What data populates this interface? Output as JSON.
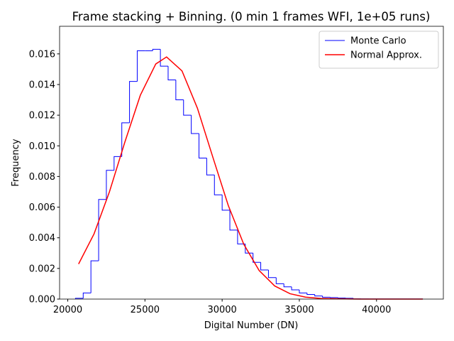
{
  "chart_data": {
    "type": "histogram",
    "title": "Frame stacking + Binning. (0 min 1 frames WFI, 1e+05 runs)",
    "x_label": "Digital Number (DN)",
    "y_label": "Frequency",
    "xlim": [
      19470,
      44330
    ],
    "ylim": [
      0,
      0.0178
    ],
    "xticks": [
      20000,
      25000,
      30000,
      35000,
      40000
    ],
    "yticks": [
      {
        "value": 0,
        "label": "0.000"
      },
      {
        "value": 0.002,
        "label": "0.002"
      },
      {
        "value": 0.004,
        "label": "0.004"
      },
      {
        "value": 0.006,
        "label": "0.006"
      },
      {
        "value": 0.008,
        "label": "0.008"
      },
      {
        "value": 0.01,
        "label": "0.010"
      },
      {
        "value": 0.012,
        "label": "0.012"
      },
      {
        "value": 0.014,
        "label": "0.014"
      },
      {
        "value": 0.016,
        "label": "0.016"
      }
    ],
    "legend": "upper right",
    "series": [
      {
        "name": "Monte Carlo",
        "type": "histogram",
        "color": "#0000ff",
        "bins": [
          20500,
          21000,
          21500,
          22000,
          22500,
          23000,
          23500,
          24000,
          24500,
          25000,
          25500,
          26000,
          26500,
          27000,
          27500,
          28000,
          28500,
          29000,
          29500,
          30000,
          30500,
          31000,
          31500,
          32000,
          32500,
          33000,
          33500,
          34000,
          34500,
          35000,
          35500,
          36000,
          36500,
          37000,
          37500,
          38000,
          38500,
          39000,
          39500,
          40000,
          40500,
          41000,
          41500,
          42000,
          42500,
          43000
        ],
        "values": [
          5e-05,
          0.0004,
          0.0025,
          0.0065,
          0.0084,
          0.0093,
          0.0115,
          0.0142,
          0.0162,
          0.0162,
          0.0163,
          0.0152,
          0.0143,
          0.013,
          0.012,
          0.0108,
          0.0092,
          0.0081,
          0.0068,
          0.0058,
          0.0045,
          0.0036,
          0.003,
          0.0024,
          0.0019,
          0.0014,
          0.001,
          0.0008,
          0.0006,
          0.0004,
          0.0003,
          0.0002,
          0.00012,
          0.0001,
          7e-05,
          5e-05,
          2e-05,
          1e-05,
          1e-05,
          1e-05,
          1e-05,
          1e-05,
          1e-05,
          1e-05,
          1e-05
        ]
      },
      {
        "name": "Normal Approx.",
        "type": "line",
        "color": "#ff0000",
        "x": [
          20700,
          21700,
          22700,
          23700,
          24700,
          25700,
          26400,
          27400,
          28400,
          29400,
          30400,
          31400,
          32400,
          33400,
          34400,
          35400,
          36400,
          38400,
          43000
        ],
        "values": [
          0.00229,
          0.00425,
          0.007,
          0.01025,
          0.0133,
          0.01534,
          0.0158,
          0.01489,
          0.01245,
          0.00925,
          0.0061,
          0.00358,
          0.00186,
          0.00086,
          0.00035,
          0.000128,
          4.1e-05,
          3e-06,
          0
        ]
      }
    ]
  }
}
